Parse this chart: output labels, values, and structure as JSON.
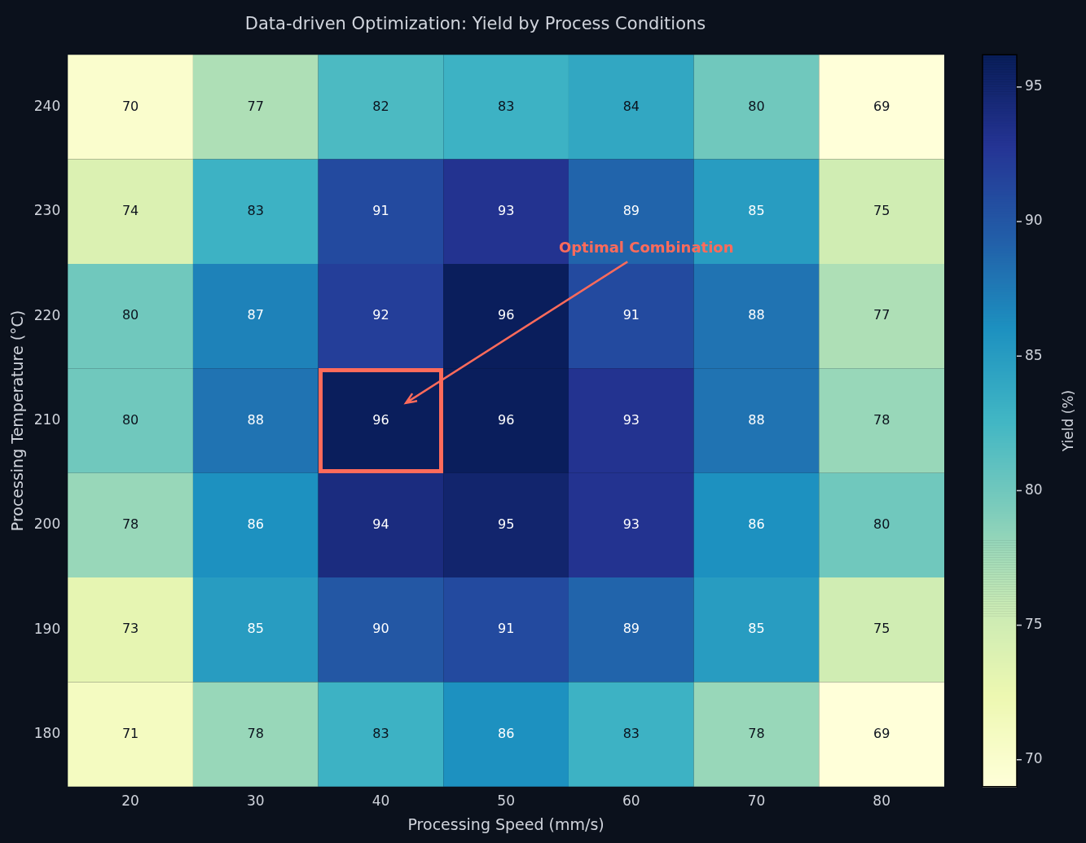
{
  "chart_data": {
    "type": "heatmap",
    "title": "Data-driven Optimization: Yield by Process Conditions",
    "xlabel": "Processing Speed (mm/s)",
    "ylabel": "Processing Temperature (°C)",
    "clabel": "Yield (%)",
    "categories": [
      "20",
      "30",
      "40",
      "50",
      "60",
      "70",
      "80"
    ],
    "y_categories": [
      "240",
      "230",
      "220",
      "210",
      "200",
      "190",
      "180"
    ],
    "cells": [
      [
        70,
        77,
        82,
        83,
        84,
        80,
        69
      ],
      [
        74,
        83,
        91,
        93,
        89,
        85,
        75
      ],
      [
        80,
        87,
        92,
        96,
        91,
        88,
        77
      ],
      [
        80,
        88,
        96,
        96,
        93,
        88,
        78
      ],
      [
        78,
        86,
        94,
        95,
        93,
        86,
        80
      ],
      [
        73,
        85,
        90,
        91,
        89,
        85,
        75
      ],
      [
        71,
        78,
        83,
        86,
        83,
        78,
        69
      ]
    ],
    "clim": [
      69,
      96.2
    ],
    "cticks": [
      70,
      75,
      80,
      85,
      90,
      95
    ],
    "data_labels": true,
    "annotations": [
      "Optimal Combination"
    ]
  }
}
